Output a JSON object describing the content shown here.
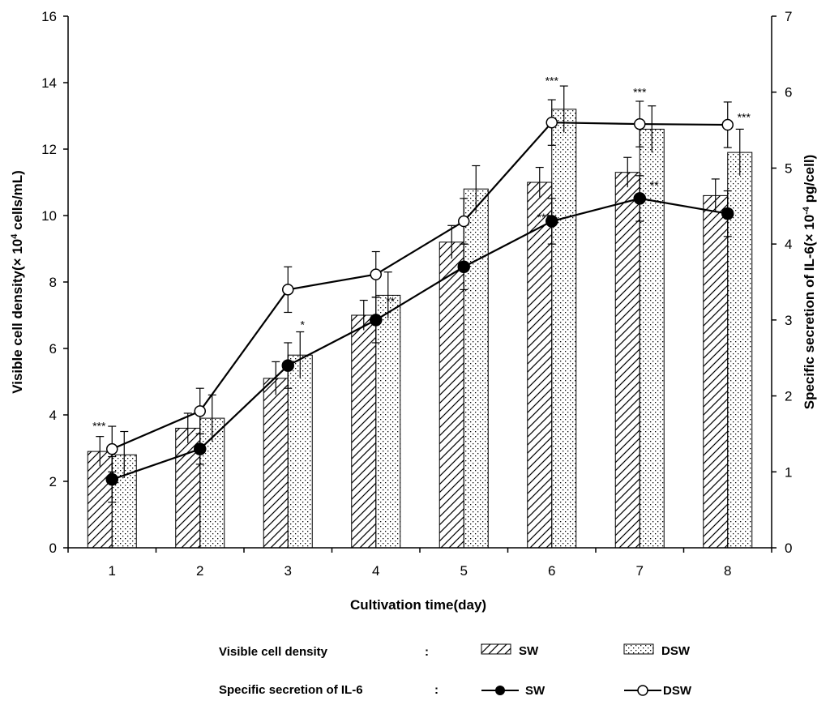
{
  "chart_data": {
    "type": "bar+line",
    "categories": [
      "1",
      "2",
      "3",
      "4",
      "5",
      "6",
      "7",
      "8"
    ],
    "xlabel": "Cultivation time(day)",
    "ylabel_left": "Visible cell density(× 10",
    "ylabel_left_sup": "4",
    "ylabel_left_end": " cells/mL)",
    "ylabel_right": "Specific secretion of IL-6(× 10",
    "ylabel_right_sup": "-4",
    "ylabel_right_end": " pg/cell)",
    "ylim_left": [
      0,
      16
    ],
    "yticks_left": [
      "0",
      "2",
      "4",
      "6",
      "8",
      "10",
      "12",
      "14",
      "16"
    ],
    "ylim_right": [
      0,
      7
    ],
    "yticks_right": [
      "0",
      "1",
      "2",
      "3",
      "4",
      "5",
      "6",
      "7"
    ],
    "bar_series": [
      {
        "name": "SW",
        "pattern": "hatch",
        "values": [
          2.9,
          3.6,
          5.1,
          7.0,
          9.2,
          11.0,
          11.3,
          10.6
        ],
        "errors": [
          0.45,
          0.45,
          0.5,
          0.45,
          0.5,
          0.45,
          0.45,
          0.5
        ]
      },
      {
        "name": "DSW",
        "pattern": "dots",
        "values": [
          2.8,
          3.9,
          5.8,
          7.6,
          10.8,
          13.2,
          12.6,
          11.9
        ],
        "errors": [
          0.7,
          0.7,
          0.7,
          0.7,
          0.7,
          0.7,
          0.7,
          0.7
        ]
      }
    ],
    "line_series": [
      {
        "name": "SW",
        "marker": "filled",
        "values": [
          0.9,
          1.3,
          2.4,
          3.0,
          3.7,
          4.3,
          4.6,
          4.4
        ],
        "errors": [
          0.3,
          0.2,
          0.3,
          0.3,
          0.3,
          0.3,
          0.3,
          0.3
        ]
      },
      {
        "name": "DSW",
        "marker": "open",
        "values": [
          1.3,
          1.8,
          3.4,
          3.6,
          4.3,
          5.6,
          5.58,
          5.57
        ],
        "errors": [
          0.3,
          0.3,
          0.3,
          0.3,
          0.3,
          0.3,
          0.3,
          0.3
        ]
      }
    ],
    "annotations": [
      {
        "text": "***",
        "x": "1",
        "value": 3.55,
        "axis": "left"
      },
      {
        "text": "*",
        "x": "3",
        "value": 6.6,
        "axis": "left"
      },
      {
        "text": "**",
        "x": "4",
        "value": 7.3,
        "axis": "left"
      },
      {
        "text": "***",
        "x": "6",
        "value": 4.3,
        "axis": "right"
      },
      {
        "text": "***",
        "x": "6",
        "value": 6.1,
        "axis": "right"
      },
      {
        "text": "***",
        "x": "7",
        "value": 5.95,
        "axis": "right"
      },
      {
        "text": "**",
        "x": "7",
        "value": 4.72,
        "axis": "right"
      },
      {
        "text": "***",
        "x": "8",
        "value": 5.62,
        "axis": "right"
      }
    ],
    "legend": {
      "row1_label": "Visible cell density",
      "row2_label": "Specific secretion of IL-6",
      "colon": ":",
      "sw": "SW",
      "dsw": "DSW"
    }
  }
}
